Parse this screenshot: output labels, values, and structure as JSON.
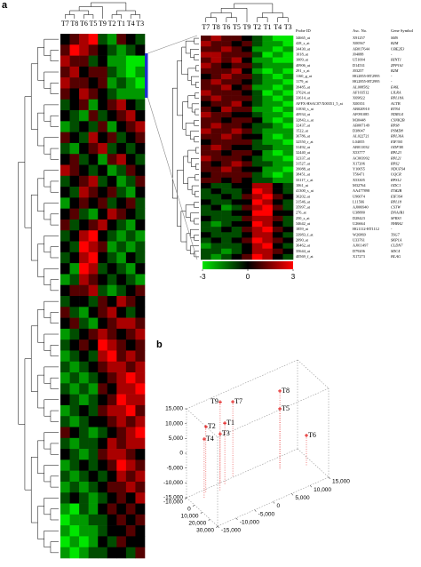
{
  "chart_data": [
    {
      "type": "heatmap",
      "panel_label": "a",
      "columns": [
        "T7",
        "T8",
        "T6",
        "T5",
        "T9",
        "T2",
        "T1",
        "T4",
        "T3"
      ],
      "values": [
        [
          0,
          1,
          2,
          3,
          -1,
          -2,
          1,
          0,
          -1
        ],
        [
          1,
          3,
          2,
          1,
          0,
          -1,
          -2,
          -1,
          0
        ],
        [
          2,
          1,
          1,
          -1,
          0,
          -2,
          -2,
          -3,
          -3
        ],
        [
          1,
          2,
          0,
          1,
          1,
          -1,
          -2,
          -3,
          -2
        ],
        [
          2,
          1,
          1,
          0,
          1,
          -2,
          -1,
          -2,
          -3
        ],
        [
          1,
          0,
          2,
          1,
          0,
          -1,
          -2,
          -2,
          -2
        ],
        [
          -1,
          0,
          1,
          -2,
          0,
          1,
          2,
          0,
          -1
        ],
        [
          0,
          -1,
          -2,
          1,
          -1,
          0,
          1,
          2,
          0
        ],
        [
          -2,
          -1,
          0,
          -1,
          1,
          -2,
          0,
          1,
          2
        ],
        [
          1,
          0,
          -1,
          2,
          0,
          1,
          -1,
          0,
          1
        ],
        [
          -1,
          -2,
          0,
          1,
          2,
          -1,
          0,
          -1,
          0
        ],
        [
          0,
          1,
          -1,
          0,
          -2,
          1,
          2,
          0,
          -1
        ],
        [
          2,
          1,
          0,
          -1,
          0,
          -2,
          -1,
          1,
          0
        ],
        [
          -1,
          0,
          1,
          2,
          -1,
          0,
          -2,
          -1,
          1
        ],
        [
          0,
          -1,
          2,
          1,
          0,
          1,
          -1,
          -2,
          0
        ],
        [
          -2,
          0,
          1,
          0,
          1,
          -1,
          0,
          1,
          -1
        ],
        [
          0,
          1,
          -1,
          -2,
          0,
          2,
          1,
          0,
          -1
        ],
        [
          1,
          -1,
          0,
          1,
          2,
          0,
          -1,
          -2,
          0
        ],
        [
          -1,
          0,
          2,
          3,
          0,
          -1,
          -2,
          -1,
          -2
        ],
        [
          0,
          -1,
          3,
          2,
          1,
          -2,
          -1,
          -2,
          -1
        ],
        [
          -1,
          0,
          2,
          3,
          0,
          -1,
          -2,
          0,
          -1
        ],
        [
          0,
          -2,
          3,
          2,
          -1,
          0,
          -1,
          -2,
          0
        ],
        [
          -2,
          -1,
          2,
          1,
          0,
          -1,
          0,
          -1,
          -2
        ],
        [
          0,
          1,
          1,
          2,
          -1,
          -2,
          -1,
          0,
          1
        ],
        [
          -1,
          0,
          0,
          -1,
          1,
          0,
          2,
          1,
          0
        ],
        [
          1,
          -1,
          -2,
          0,
          1,
          2,
          0,
          -1,
          0
        ],
        [
          0,
          1,
          -1,
          -2,
          0,
          1,
          2,
          2,
          1
        ],
        [
          -2,
          -1,
          0,
          1,
          2,
          1,
          0,
          1,
          2
        ],
        [
          -1,
          0,
          1,
          0,
          3,
          2,
          1,
          0,
          1
        ],
        [
          -2,
          -1,
          0,
          -1,
          2,
          3,
          1,
          2,
          1
        ],
        [
          -1,
          -2,
          -1,
          0,
          1,
          2,
          2,
          1,
          2
        ],
        [
          -2,
          -1,
          -2,
          -1,
          0,
          1,
          2,
          3,
          2
        ],
        [
          -1,
          -2,
          -1,
          -2,
          1,
          0,
          2,
          2,
          3
        ],
        [
          0,
          -1,
          -2,
          -1,
          0,
          1,
          3,
          2,
          2
        ],
        [
          -2,
          -1,
          0,
          -1,
          1,
          2,
          2,
          3,
          1
        ],
        [
          -1,
          -2,
          -1,
          0,
          0,
          1,
          2,
          1,
          2
        ],
        [
          1,
          0,
          -1,
          -2,
          -1,
          0,
          1,
          2,
          3
        ],
        [
          -1,
          -2,
          -1,
          -1,
          0,
          2,
          1,
          2,
          2
        ],
        [
          0,
          -1,
          -2,
          -1,
          1,
          2,
          2,
          1,
          0
        ],
        [
          -2,
          -1,
          0,
          -1,
          0,
          1,
          3,
          2,
          1
        ],
        [
          -1,
          -2,
          -1,
          0,
          -1,
          0,
          2,
          1,
          2
        ],
        [
          -2,
          -1,
          -2,
          -1,
          0,
          1,
          1,
          2,
          1
        ],
        [
          -1,
          0,
          -1,
          -2,
          -1,
          0,
          1,
          0,
          2
        ],
        [
          -2,
          -3,
          -1,
          -2,
          0,
          1,
          0,
          1,
          0
        ],
        [
          -3,
          -2,
          -2,
          -1,
          -1,
          0,
          1,
          0,
          1
        ],
        [
          -2,
          -3,
          -2,
          -2,
          -1,
          0,
          0,
          1,
          0
        ],
        [
          -3,
          -2,
          -3,
          -2,
          0,
          -1,
          1,
          0,
          0
        ],
        [
          -2,
          -3,
          -2,
          -1,
          -1,
          0,
          0,
          -1,
          1
        ]
      ]
    },
    {
      "type": "heatmap",
      "columns": [
        "T7",
        "T8",
        "T6",
        "T5",
        "T9",
        "T2",
        "T1",
        "T4",
        "T3"
      ],
      "table_header": [
        "Probe ID",
        "Asc. No.",
        "Gene Symbol"
      ],
      "row_labels": [
        [
          "34665_at",
          "X91257",
          "SMS"
        ],
        [
          "428_s_at",
          "X00567",
          "B2M"
        ],
        [
          "34430_at",
          "AB017644",
          "UBE2E3"
        ],
        [
          "1018_at",
          "J04088",
          "-"
        ],
        [
          "1009_at",
          "U51004",
          "HINT1"
        ],
        [
          "40906_at",
          "D14531",
          "ZFP161"
        ],
        [
          "291_s_at",
          "J03257",
          "B2M"
        ],
        [
          "1160_g_at",
          "HG2855-HT2995",
          "-"
        ],
        [
          "1179_at",
          "HG2855-HT2995",
          "-"
        ],
        [
          "39485_at",
          "AL008582",
          "E46L"
        ],
        [
          "37624_at",
          "AF103512",
          "LILRA"
        ],
        [
          "33614_at",
          "X69822",
          "RPL18A"
        ],
        [
          "AFFX-HSAC07/X00351_5_at",
          "X00351",
          "ACTB"
        ],
        [
          "31830_s_at",
          "AB020910",
          "RTN4"
        ],
        [
          "40934_at",
          "AF091085",
          "NDRG4"
        ],
        [
          "32843_s_at",
          "M30448",
          "CSNK2B"
        ],
        [
          "32437_at",
          "AB007149",
          "RPS8"
        ],
        [
          "1522_at",
          "D38047",
          "PSMD8"
        ],
        [
          "36786_at",
          "AL022721",
          "RPL36A"
        ],
        [
          "32550_r_at",
          "L04055",
          "EIF3S5"
        ],
        [
          "31492_at",
          "AB011032",
          "ODF3B"
        ],
        [
          "32440_at",
          "X53777",
          "RPL23"
        ],
        [
          "32337_at",
          "AC003992",
          "RPL21"
        ],
        [
          "31527_at",
          "X17206",
          "RPS2"
        ],
        [
          "39088_at",
          "Y10055",
          "NDUFS4"
        ],
        [
          "38451_at",
          "T56471",
          "UQCR"
        ],
        [
          "33117_r_at",
          "X53305",
          "RPS12"
        ],
        [
          "1061_at",
          "M32764",
          "ODC1"
        ],
        [
          "41300_s_at",
          "AA477898",
          "ITM2B"
        ],
        [
          "36202_at",
          "U96074",
          "EIF3S4"
        ],
        [
          "31546_at",
          "L11566",
          "RPL18"
        ],
        [
          "35997_at",
          "AJ006940",
          "CSTW"
        ],
        [
          "276_at",
          "U38880",
          "DNAJB1"
        ],
        [
          "250_s_at",
          "D28423",
          "SFRS3"
        ],
        [
          "34642_at",
          "U26664",
          "NHBA2"
        ],
        [
          "1859_at",
          "HG1112-HT1112",
          "-"
        ],
        [
          "33983_f_at",
          "W26869",
          "TSG7"
        ],
        [
          "2090_at",
          "U33761",
          "SKP1A"
        ],
        [
          "36462_at",
          "AJ011497",
          "CLDN7"
        ],
        [
          "35644_at",
          "D79206",
          "SDC4"
        ],
        [
          "40569_f_at",
          "X17273",
          "HLAG"
        ]
      ],
      "values": [
        [
          1,
          2,
          1,
          1,
          0,
          -1,
          -2,
          -3,
          -3
        ],
        [
          2,
          1,
          1,
          0,
          1,
          -1,
          -2,
          -2,
          -3
        ],
        [
          1,
          1,
          2,
          1,
          0,
          -2,
          -2,
          -3,
          -2
        ],
        [
          2,
          2,
          1,
          1,
          1,
          -1,
          -3,
          -2,
          -3
        ],
        [
          1,
          2,
          1,
          2,
          0,
          -2,
          -2,
          -3,
          -3
        ],
        [
          2,
          1,
          0,
          1,
          1,
          -1,
          -2,
          -2,
          -2
        ],
        [
          1,
          1,
          1,
          2,
          0,
          -2,
          -3,
          -2,
          -3
        ],
        [
          0,
          1,
          2,
          1,
          1,
          -1,
          -2,
          -3,
          -2
        ],
        [
          1,
          2,
          1,
          1,
          0,
          -1,
          -2,
          -2,
          -3
        ],
        [
          1,
          1,
          2,
          0,
          1,
          -2,
          -2,
          -3,
          -2
        ],
        [
          2,
          1,
          1,
          1,
          0,
          -1,
          -3,
          -2,
          -3
        ],
        [
          1,
          2,
          1,
          1,
          1,
          -1,
          -2,
          -3,
          -2
        ],
        [
          0,
          1,
          1,
          2,
          0,
          -1,
          -2,
          -2,
          -3
        ],
        [
          1,
          0,
          2,
          1,
          1,
          -2,
          -2,
          -3,
          -2
        ],
        [
          2,
          1,
          1,
          0,
          0,
          -1,
          -2,
          -2,
          -3
        ],
        [
          1,
          1,
          0,
          1,
          1,
          0,
          -2,
          -3,
          -2
        ],
        [
          1,
          2,
          1,
          1,
          0,
          -1,
          -1,
          -2,
          -3
        ],
        [
          2,
          1,
          1,
          2,
          1,
          -1,
          -2,
          -2,
          -2
        ],
        [
          1,
          1,
          2,
          1,
          0,
          0,
          -2,
          -3,
          -2
        ],
        [
          0,
          1,
          1,
          1,
          1,
          -1,
          -2,
          -2,
          -3
        ],
        [
          1,
          2,
          1,
          0,
          0,
          -1,
          -1,
          -2,
          -2
        ],
        [
          1,
          1,
          0,
          1,
          1,
          0,
          -2,
          -3,
          -2
        ],
        [
          2,
          1,
          1,
          1,
          0,
          -1,
          -2,
          -2,
          -3
        ],
        [
          1,
          0,
          1,
          2,
          1,
          -1,
          -1,
          -2,
          -2
        ],
        [
          1,
          1,
          2,
          1,
          0,
          0,
          -2,
          -2,
          -3
        ],
        [
          0,
          1,
          1,
          1,
          1,
          -1,
          -2,
          -3,
          -2
        ],
        [
          1,
          1,
          0,
          1,
          0,
          -1,
          -1,
          -2,
          -2
        ],
        [
          0,
          -1,
          -1,
          0,
          0,
          2,
          2,
          0,
          -1
        ],
        [
          -1,
          0,
          -1,
          -1,
          0,
          3,
          2,
          0,
          -1
        ],
        [
          -1,
          -1,
          0,
          -1,
          1,
          2,
          3,
          1,
          0
        ],
        [
          0,
          -1,
          -1,
          0,
          0,
          3,
          2,
          0,
          -1
        ],
        [
          -1,
          0,
          -2,
          -1,
          1,
          2,
          3,
          1,
          -1
        ],
        [
          -1,
          -1,
          -1,
          0,
          0,
          3,
          3,
          0,
          0
        ],
        [
          0,
          -1,
          -1,
          -1,
          1,
          2,
          2,
          1,
          -1
        ],
        [
          -1,
          -2,
          -1,
          0,
          0,
          3,
          2,
          0,
          -1
        ],
        [
          -1,
          -1,
          0,
          -1,
          1,
          2,
          3,
          1,
          0
        ],
        [
          0,
          -1,
          -1,
          -1,
          0,
          2,
          2,
          0,
          -1
        ],
        [
          -1,
          0,
          -1,
          0,
          1,
          3,
          2,
          1,
          0
        ],
        [
          -2,
          -1,
          -1,
          -1,
          0,
          2,
          3,
          0,
          -1
        ],
        [
          -1,
          -1,
          -2,
          -1,
          0,
          2,
          2,
          1,
          0
        ],
        [
          -1,
          -2,
          -1,
          0,
          1,
          3,
          2,
          0,
          -1
        ]
      ],
      "colorbar": {
        "lim": [
          -3,
          3
        ],
        "ticks": [
          -3,
          0,
          3
        ],
        "colors": [
          "#00e600",
          "#000000",
          "#ff0000"
        ]
      }
    },
    {
      "type": "scatter3d",
      "panel_label": "b",
      "color": "#e00000",
      "xlim": [
        -10000,
        30000
      ],
      "xticks": [
        {
          "value": -10000,
          "label": "-10,000"
        },
        {
          "value": 0,
          "label": "0"
        },
        {
          "value": 10000,
          "label": "10,000"
        },
        {
          "value": 20000,
          "label": "20,000"
        },
        {
          "value": 30000,
          "label": "30,000"
        }
      ],
      "ylim": [
        -15000,
        15000
      ],
      "yticks": [
        {
          "value": -15000,
          "label": "-15,000"
        },
        {
          "value": -10000,
          "label": "-10,000"
        },
        {
          "value": -5000,
          "label": "-5,000"
        },
        {
          "value": 0,
          "label": "0"
        },
        {
          "value": 5000,
          "label": "5,000"
        },
        {
          "value": 10000,
          "label": "10,000"
        },
        {
          "value": 15000,
          "label": "15,000"
        }
      ],
      "zlim": [
        -15000,
        15000
      ],
      "zticks": [
        {
          "value": -15000,
          "label": "-15,000"
        },
        {
          "value": -10000,
          "label": "-10,000"
        },
        {
          "value": -5000,
          "label": "-5,000"
        },
        {
          "value": 0,
          "label": "0"
        },
        {
          "value": 5000,
          "label": "5,000"
        },
        {
          "value": 10000,
          "label": "10,000"
        },
        {
          "value": 15000,
          "label": "15,000"
        }
      ],
      "points": [
        {
          "label": "T8",
          "x": 2000,
          "y": 7700,
          "z": 11400
        },
        {
          "label": "T9",
          "x": -10000,
          "y": -5900,
          "z": 12300
        },
        {
          "label": "T7",
          "x": -10000,
          "y": -2500,
          "z": 10500
        },
        {
          "label": "T5",
          "x": 2000,
          "y": 7700,
          "z": 5400
        },
        {
          "label": "T2",
          "x": -6000,
          "y": -10600,
          "z": 7500
        },
        {
          "label": "T1",
          "x": -6000,
          "y": -5500,
          "z": 5900
        },
        {
          "label": "T3",
          "x": -2000,
          "y": -7600,
          "z": 4400
        },
        {
          "label": "T4",
          "x": -2000,
          "y": -11900,
          "z": 5000
        },
        {
          "label": "T6",
          "x": 10000,
          "y": 13200,
          "z": -4700
        }
      ]
    }
  ]
}
